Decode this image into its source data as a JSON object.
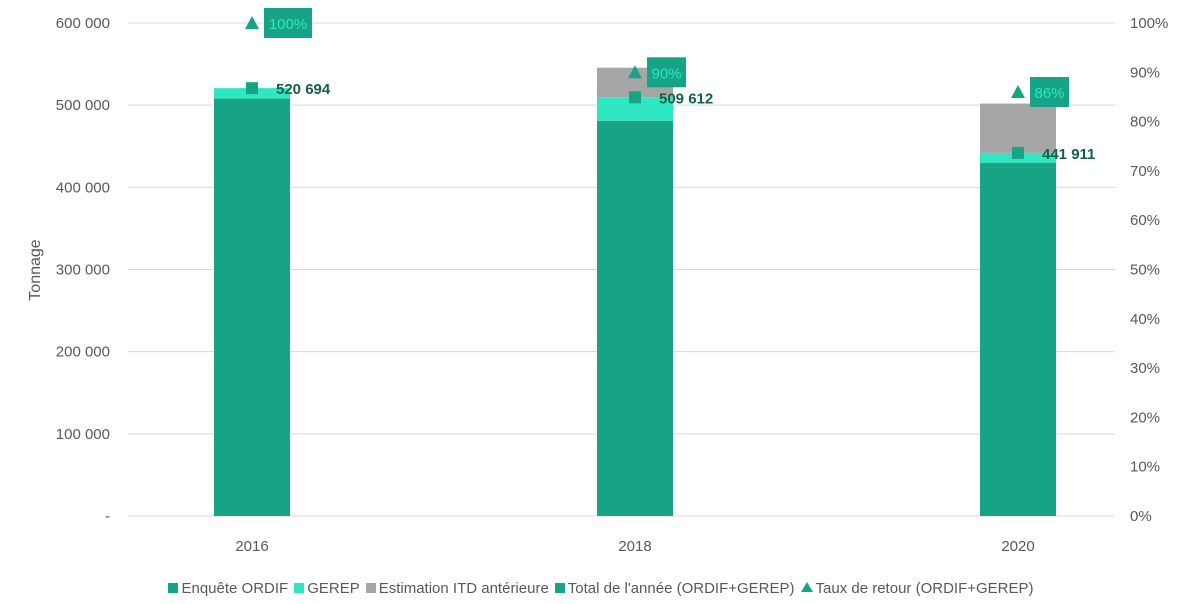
{
  "chart_data": {
    "type": "bar",
    "categories": [
      "2016",
      "2018",
      "2020"
    ],
    "y_left": {
      "label": "Tonnage",
      "range": [
        0,
        600000
      ],
      "ticks": [
        "-",
        "100 000",
        "200 000",
        "300 000",
        "400 000",
        "500 000",
        "600 000"
      ]
    },
    "y_right": {
      "range": [
        0,
        100
      ],
      "ticks": [
        "0%",
        "10%",
        "20%",
        "30%",
        "40%",
        "50%",
        "60%",
        "70%",
        "80%",
        "90%",
        "100%"
      ]
    },
    "series": [
      {
        "name": "Enquête ORDIF",
        "kind": "stacked-bar",
        "color": "#17a386",
        "values": [
          508000,
          481000,
          430000
        ]
      },
      {
        "name": "GEREP",
        "kind": "stacked-bar",
        "color": "#2ee6c0",
        "values": [
          12694,
          28612,
          11911
        ]
      },
      {
        "name": "Estimation ITD antérieure",
        "kind": "stacked-bar",
        "color": "#a6a6a6",
        "values": [
          0,
          36000,
          60000
        ]
      },
      {
        "name": "Total de l'année (ORDIF+GEREP)",
        "kind": "marker-square",
        "color": "#17a386",
        "values": [
          520694,
          509612,
          441911
        ],
        "labels": [
          "520 694",
          "509 612",
          "441 911"
        ]
      },
      {
        "name": "Taux de retour (ORDIF+GEREP)",
        "kind": "marker-triangle",
        "axis": "right",
        "color": "#17a386",
        "values": [
          100,
          90,
          86
        ],
        "labels": [
          "100%",
          "90%",
          "86%"
        ]
      }
    ],
    "gridlines": true,
    "legend_position": "bottom"
  }
}
